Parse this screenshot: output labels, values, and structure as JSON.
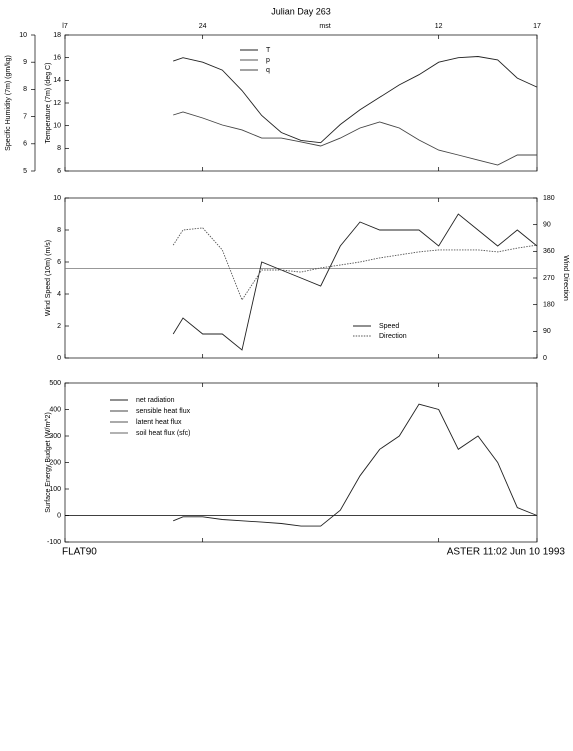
{
  "chart_data": [
    {
      "type": "line",
      "title": "Julian Day 263",
      "x_unit": "mst",
      "x": [
        22.5,
        23,
        24,
        25,
        26,
        27,
        28,
        29,
        30,
        31,
        32,
        33,
        34,
        35,
        36,
        37,
        38,
        39,
        40,
        41
      ],
      "xlim": [
        17,
        41
      ],
      "xticks": [
        {
          "value": 17,
          "label": "l7"
        },
        24,
        {
          "value": 36,
          "label": "12"
        },
        {
          "value": 41,
          "label": "17"
        }
      ],
      "ylabel": "Temperature (7m) (deg C)",
      "ylim": [
        6,
        18
      ],
      "yticks": [
        6,
        8,
        10,
        12,
        14,
        16,
        18
      ],
      "y2label": "Specific Humidity (7m) (gm/kg)",
      "y2lim": [
        5,
        10
      ],
      "y2ticks": [
        5,
        6,
        7,
        8,
        9,
        10
      ],
      "series": [
        {
          "name": "T",
          "color": "#222222",
          "values": [
            15.7,
            16.0,
            15.6,
            14.9,
            13.1,
            10.9,
            9.4,
            8.7,
            8.5,
            10.1,
            11.4,
            12.5,
            13.6,
            14.5,
            15.6,
            16.0,
            16.1,
            15.8,
            14.2,
            13.4
          ]
        },
        {
          "name": "p",
          "color": "#555555",
          "values": [
            null,
            null,
            null,
            null,
            null,
            null,
            null,
            null,
            null,
            null,
            null,
            null,
            null,
            null,
            null,
            null,
            null,
            null,
            null,
            null
          ]
        },
        {
          "name": "q",
          "color": "#444444",
          "axis": "y2",
          "values": [
            7.06,
            7.17,
            6.95,
            6.69,
            6.51,
            6.21,
            6.21,
            6.07,
            5.92,
            6.21,
            6.58,
            6.8,
            6.58,
            6.14,
            5.77,
            5.59,
            5.4,
            5.22,
            5.59,
            5.59
          ]
        }
      ]
    },
    {
      "type": "line",
      "x": [
        22.5,
        23,
        24,
        25,
        26,
        27,
        28,
        29,
        30,
        31,
        32,
        33,
        34,
        35,
        36,
        37,
        38,
        39,
        40,
        41
      ],
      "xlim": [
        17,
        41
      ],
      "xticks": [
        17,
        24,
        36,
        41
      ],
      "ylabel": "Wind Speed (10m) (m/s)",
      "ylim": [
        0,
        10
      ],
      "yticks": [
        0,
        2,
        4,
        6,
        8,
        10
      ],
      "y2label": "Wind Direction",
      "y2lim": [
        0,
        540
      ],
      "y2ticks": [
        0,
        90,
        180,
        270,
        360,
        {
          "value": 450,
          "label": "90"
        },
        {
          "value": 540,
          "label": "180"
        }
      ],
      "hline": 5.6,
      "series": [
        {
          "name": "Speed",
          "color": "#222222",
          "values": [
            1.5,
            2.5,
            1.5,
            1.5,
            0.5,
            6,
            5.5,
            5,
            4.5,
            7,
            8.5,
            8,
            8,
            8,
            7,
            9,
            8,
            7,
            8,
            7
          ]
        },
        {
          "name": "Direction",
          "color": "#555555",
          "style": "dotted",
          "axis": "y2",
          "values": [
            381,
            432,
            439,
            365,
            196,
            297,
            297,
            290,
            304,
            314,
            324,
            338,
            348,
            358,
            365,
            365,
            365,
            358,
            371,
            381
          ]
        }
      ]
    },
    {
      "type": "line",
      "x": [
        22.5,
        23,
        24,
        25,
        26,
        27,
        28,
        29,
        30,
        31,
        32,
        33,
        34,
        35,
        36,
        37,
        38,
        39,
        40,
        41
      ],
      "xlim": [
        17,
        41
      ],
      "xticks": [
        17,
        24,
        36,
        41
      ],
      "ylabel": "Surface Energy Budget (W/m^2)",
      "ylim": [
        -100,
        500
      ],
      "yticks": [
        -100,
        0,
        100,
        200,
        300,
        400,
        500
      ],
      "hline": 0,
      "series": [
        {
          "name": "net radiation",
          "color": "#222222",
          "values": [
            -20,
            -5,
            -5,
            -15,
            -20,
            -25,
            -30,
            -40,
            -40,
            20,
            150,
            250,
            300,
            420,
            400,
            250,
            300,
            200,
            30,
            0
          ]
        },
        {
          "name": "sensible heat flux",
          "color": "#444444",
          "values": [
            null,
            null,
            null,
            null,
            null,
            null,
            null,
            null,
            null,
            null,
            null,
            null,
            null,
            null,
            null,
            null,
            null,
            null,
            null,
            null
          ]
        },
        {
          "name": "latent heat flux",
          "color": "#555555",
          "values": [
            null,
            null,
            null,
            null,
            null,
            null,
            null,
            null,
            null,
            null,
            null,
            null,
            null,
            null,
            null,
            null,
            null,
            null,
            null,
            null
          ]
        },
        {
          "name": "soil heat flux (sfc)",
          "color": "#666666",
          "values": [
            null,
            null,
            null,
            null,
            null,
            null,
            null,
            null,
            null,
            null,
            null,
            null,
            null,
            null,
            null,
            null,
            null,
            null,
            null,
            null
          ]
        }
      ],
      "footer_left": "FLAT90",
      "footer_right": "ASTER 11:02 Jun 10 1993"
    }
  ]
}
